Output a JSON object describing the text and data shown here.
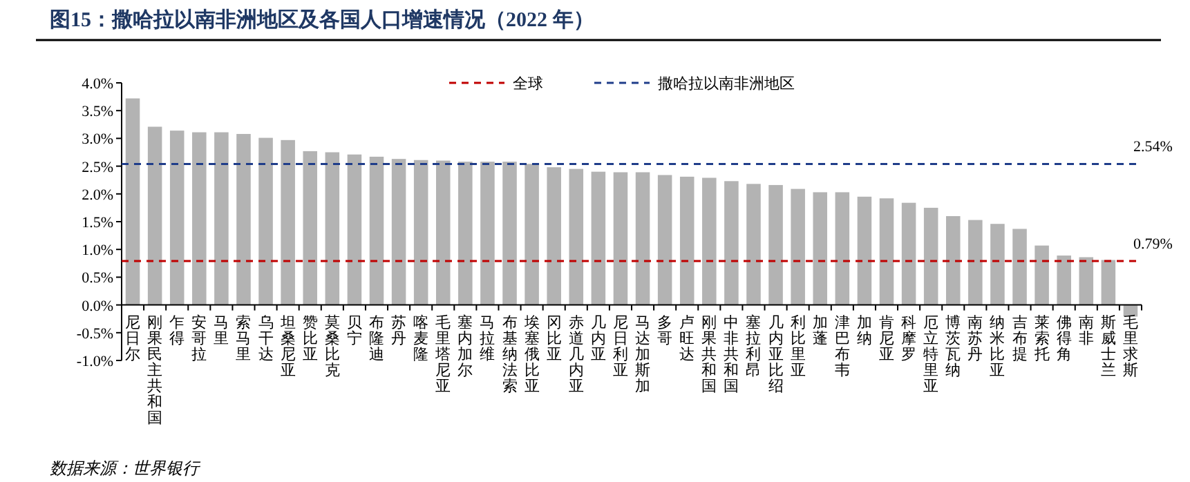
{
  "chart_data": {
    "type": "bar",
    "title": "图15：撒哈拉以南非洲地区及各国人口增速情况（2022 年）",
    "categories": [
      "尼日尔",
      "刚果民主共和国",
      "乍得",
      "安哥拉",
      "马里",
      "索马里",
      "乌干达",
      "坦桑尼亚",
      "赞比亚",
      "莫桑比克",
      "贝宁",
      "布隆迪",
      "苏丹",
      "喀麦隆",
      "毛里塔尼亚",
      "塞内加尔",
      "马拉维",
      "布基纳法索",
      "埃塞俄比亚",
      "冈比亚",
      "赤道几内亚",
      "几内亚",
      "尼日利亚",
      "马达加斯加",
      "多哥",
      "卢旺达",
      "刚果共和国",
      "中非共和国",
      "塞拉利昂",
      "几内亚比绍",
      "利比里亚",
      "加蓬",
      "津巴布韦",
      "加纳",
      "肯尼亚",
      "科摩罗",
      "厄立特里亚",
      "博茨瓦纳",
      "南苏丹",
      "纳米比亚",
      "吉布提",
      "莱索托",
      "佛得角",
      "南非",
      "斯威士兰",
      "毛里求斯"
    ],
    "series": [
      {
        "color": "#b3b3b3",
        "values": [
          3.72,
          3.21,
          3.14,
          3.11,
          3.11,
          3.08,
          3.01,
          2.97,
          2.77,
          2.75,
          2.71,
          2.67,
          2.63,
          2.61,
          2.6,
          2.58,
          2.58,
          2.58,
          2.54,
          2.48,
          2.45,
          2.4,
          2.39,
          2.39,
          2.34,
          2.31,
          2.29,
          2.23,
          2.18,
          2.16,
          2.09,
          2.03,
          2.03,
          1.95,
          1.92,
          1.84,
          1.75,
          1.6,
          1.53,
          1.46,
          1.37,
          1.07,
          0.89,
          0.86,
          0.81,
          -0.21
        ]
      }
    ],
    "ylim": [
      -1,
      4
    ],
    "yticks": [
      {
        "value": -1,
        "label": "-1.0%"
      },
      {
        "value": -0.5,
        "label": "-0.5%"
      },
      {
        "value": 0,
        "label": "0.0%"
      },
      {
        "value": 0.5,
        "label": "0.5%"
      },
      {
        "value": 1,
        "label": "1.0%"
      },
      {
        "value": 1.5,
        "label": "1.5%"
      },
      {
        "value": 2,
        "label": "2.0%"
      },
      {
        "value": 2.5,
        "label": "2.5%"
      },
      {
        "value": 3,
        "label": "3.0%"
      },
      {
        "value": 3.5,
        "label": "3.5%"
      },
      {
        "value": 4,
        "label": "4.0%"
      }
    ],
    "ref_lines": [
      {
        "axis": "y",
        "value": 0.79,
        "label": "全球",
        "color": "#c00000",
        "line_style": "dashed"
      },
      {
        "axis": "y",
        "value": 2.54,
        "label": "撒哈拉以南非洲地区",
        "color": "#1f3d8a",
        "line_style": "dashed"
      }
    ],
    "annotations": [
      "0.79%",
      "2.54%",
      "数据来源：世界银行"
    ],
    "legend": "top",
    "grid": false
  }
}
